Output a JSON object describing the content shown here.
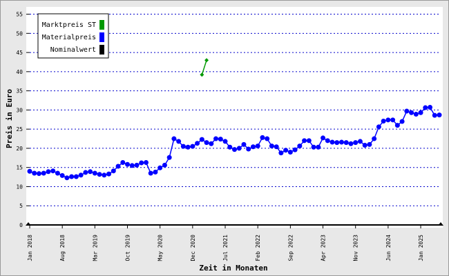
{
  "chart_data": {
    "type": "line",
    "x_label": "Zeit in Monaten",
    "y_label": "Preis in Euro",
    "categories": [
      "Jan 2018",
      null,
      null,
      null,
      null,
      null,
      null,
      "Aug 2018",
      null,
      null,
      null,
      null,
      null,
      null,
      "Mar 2019",
      null,
      null,
      null,
      null,
      null,
      null,
      "Oct 2019",
      null,
      null,
      null,
      null,
      null,
      null,
      "May 2020",
      null,
      null,
      null,
      null,
      null,
      null,
      "Dec 2020",
      null,
      null,
      null,
      null,
      null,
      null,
      "Jul 2021",
      null,
      null,
      null,
      null,
      null,
      null,
      "Feb 2022",
      null,
      null,
      null,
      null,
      null,
      null,
      "Sep 2022",
      null,
      null,
      null,
      null,
      null,
      null,
      "Apr 2023",
      null,
      null,
      null,
      null,
      null,
      null,
      "Nov 2023",
      null,
      null,
      null,
      null,
      null,
      null,
      "Jun 2024",
      null,
      null,
      null,
      null,
      null,
      null,
      "Jan 2025",
      null,
      null,
      null,
      null
    ],
    "series": [
      {
        "name": "Marktpreis ST",
        "color": "#009900",
        "values": [
          null,
          null,
          null,
          null,
          null,
          null,
          null,
          null,
          null,
          null,
          null,
          null,
          null,
          null,
          null,
          null,
          null,
          null,
          null,
          null,
          null,
          null,
          null,
          null,
          null,
          null,
          null,
          null,
          null,
          null,
          null,
          null,
          null,
          null,
          null,
          null,
          null,
          39.2,
          43.0,
          null,
          null,
          null,
          null,
          null,
          null,
          null,
          null,
          null,
          null,
          null,
          null,
          null,
          null,
          null,
          null,
          null,
          null,
          null,
          null,
          null,
          null,
          null,
          null,
          null,
          null,
          null,
          null,
          null,
          null,
          null,
          null,
          null,
          null,
          null,
          null,
          null,
          null,
          null,
          null,
          null,
          null,
          null,
          null,
          null,
          null,
          null,
          null,
          null,
          null
        ]
      },
      {
        "name": "Materialpreis",
        "color": "#0000ff",
        "values": [
          14.0,
          13.5,
          13.4,
          13.5,
          13.9,
          14.1,
          13.5,
          12.9,
          12.3,
          12.6,
          12.6,
          13.0,
          13.7,
          13.9,
          13.5,
          13.2,
          13.0,
          13.3,
          14.1,
          15.3,
          16.3,
          15.8,
          15.5,
          15.6,
          16.2,
          16.3,
          13.5,
          13.8,
          14.9,
          15.6,
          17.6,
          22.5,
          21.8,
          20.5,
          20.3,
          20.5,
          21.3,
          22.3,
          21.5,
          21.2,
          22.5,
          22.4,
          21.8,
          20.3,
          19.7,
          20.0,
          21.0,
          19.8,
          20.4,
          20.6,
          22.8,
          22.5,
          20.6,
          20.4,
          18.8,
          19.5,
          19.0,
          19.6,
          20.6,
          22.0,
          22.0,
          20.3,
          20.3,
          22.7,
          22.0,
          21.6,
          21.5,
          21.6,
          21.5,
          21.2,
          21.5,
          21.8,
          20.8,
          21.0,
          22.5,
          25.6,
          27.1,
          27.4,
          27.4,
          26.0,
          27.0,
          29.7,
          29.3,
          28.9,
          29.3,
          30.6,
          30.7,
          28.6,
          28.7
        ]
      },
      {
        "name": "Nominalwert",
        "color": "#000000",
        "values": [
          null,
          null,
          null,
          null,
          null,
          null,
          null,
          null,
          null,
          null,
          null,
          null,
          null,
          null,
          null,
          null,
          null,
          null,
          null,
          null,
          null,
          null,
          null,
          null,
          null,
          null,
          null,
          null,
          null,
          null,
          null,
          null,
          null,
          null,
          null,
          null,
          null,
          null,
          null,
          null,
          null,
          null,
          null,
          null,
          null,
          null,
          null,
          null,
          null,
          null,
          null,
          null,
          null,
          null,
          null,
          null,
          null,
          null,
          null,
          null,
          null,
          null,
          null,
          null,
          null,
          null,
          null,
          null,
          null,
          null,
          null,
          null,
          null,
          null,
          null,
          null,
          null,
          null,
          null,
          null,
          null,
          null,
          null,
          null,
          null,
          null,
          null,
          null,
          null
        ]
      }
    ],
    "ylim": [
      0,
      56
    ],
    "yticks": [
      0,
      5,
      10,
      15,
      20,
      25,
      30,
      35,
      40,
      45,
      50,
      55
    ],
    "grid": true,
    "legend": "top-left"
  }
}
